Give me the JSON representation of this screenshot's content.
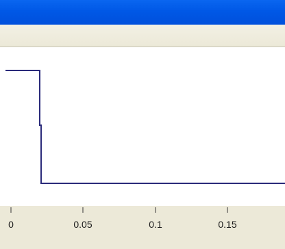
{
  "window": {
    "title": ""
  },
  "plot": {
    "x_tick_labels": [
      "0",
      "0.05",
      "0.1",
      "0.15"
    ]
  },
  "colors": {
    "title_bar": "#0058e6",
    "chrome": "#ece9d8",
    "plot_background": "#ffffff",
    "trace": "#2a2a7a"
  }
}
